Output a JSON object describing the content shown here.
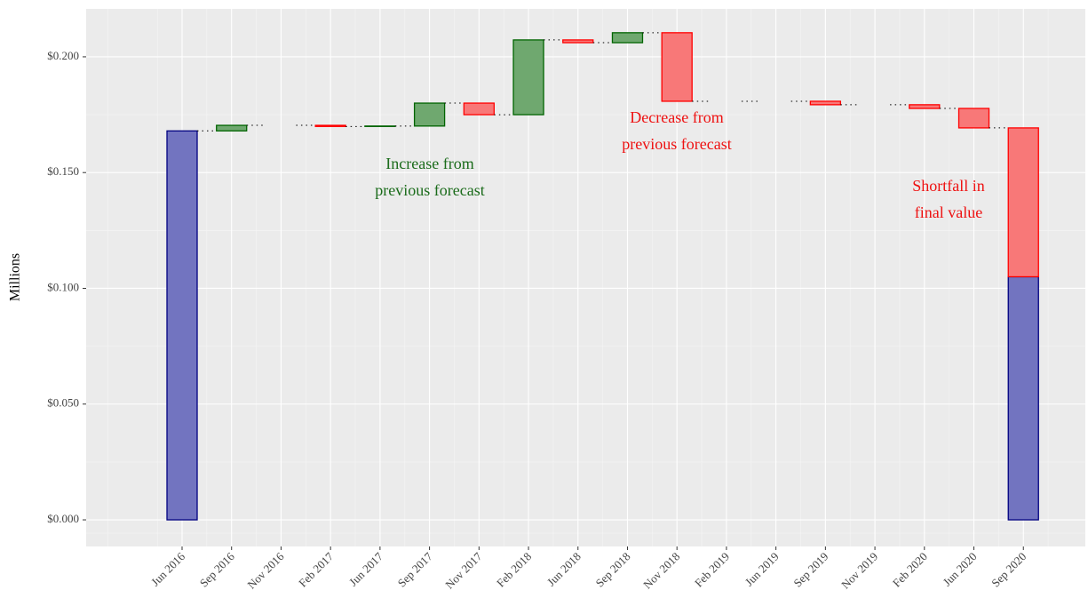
{
  "chart_data": {
    "type": "waterfall",
    "y_label": "Millions",
    "categories": [
      "Jun 2016",
      "Sep 2016",
      "Nov 2016",
      "Feb 2017",
      "Jun 2017",
      "Sep 2017",
      "Nov 2017",
      "Feb 2018",
      "Jun 2018",
      "Sep 2018",
      "Nov 2018",
      "Feb 2019",
      "Jun 2019",
      "Sep 2019",
      "Nov 2019",
      "Feb 2020",
      "Jun 2020",
      "Sep 2020"
    ],
    "values": [
      0.168,
      0.0024,
      0,
      -0.0005,
      0.0002,
      0.0099,
      -0.005,
      0.0323,
      -0.0012,
      0.0043,
      -0.0296,
      0,
      0,
      -0.0015,
      0,
      -0.0016,
      -0.0084,
      0.105
    ],
    "shortfall": 0.0643,
    "colors": {
      "total": "#7274c0",
      "total_edge": "#000080",
      "increase": "#6fa86f",
      "increase_edge": "#006400",
      "decrease": "#f87878",
      "decrease_edge": "#ff0000"
    },
    "ylim": [
      -0.0115,
      0.2207
    ],
    "yticks": [
      {
        "value": 0,
        "label": "$0.000"
      },
      {
        "value": 0.05,
        "label": "$0.050"
      },
      {
        "value": 0.1,
        "label": "$0.100"
      },
      {
        "value": 0.15,
        "label": "$0.150"
      },
      {
        "value": 0.2,
        "label": "$0.200"
      }
    ],
    "grid": true,
    "annotations": [
      {
        "lines": [
          "Increase from",
          "previous forecast"
        ],
        "color": "#1a6b1a"
      },
      {
        "lines": [
          "Decrease from",
          "previous forecast"
        ],
        "color": "#ee1111"
      },
      {
        "lines": [
          "Shortfall in",
          "final value"
        ],
        "color": "#ee1111"
      }
    ]
  }
}
